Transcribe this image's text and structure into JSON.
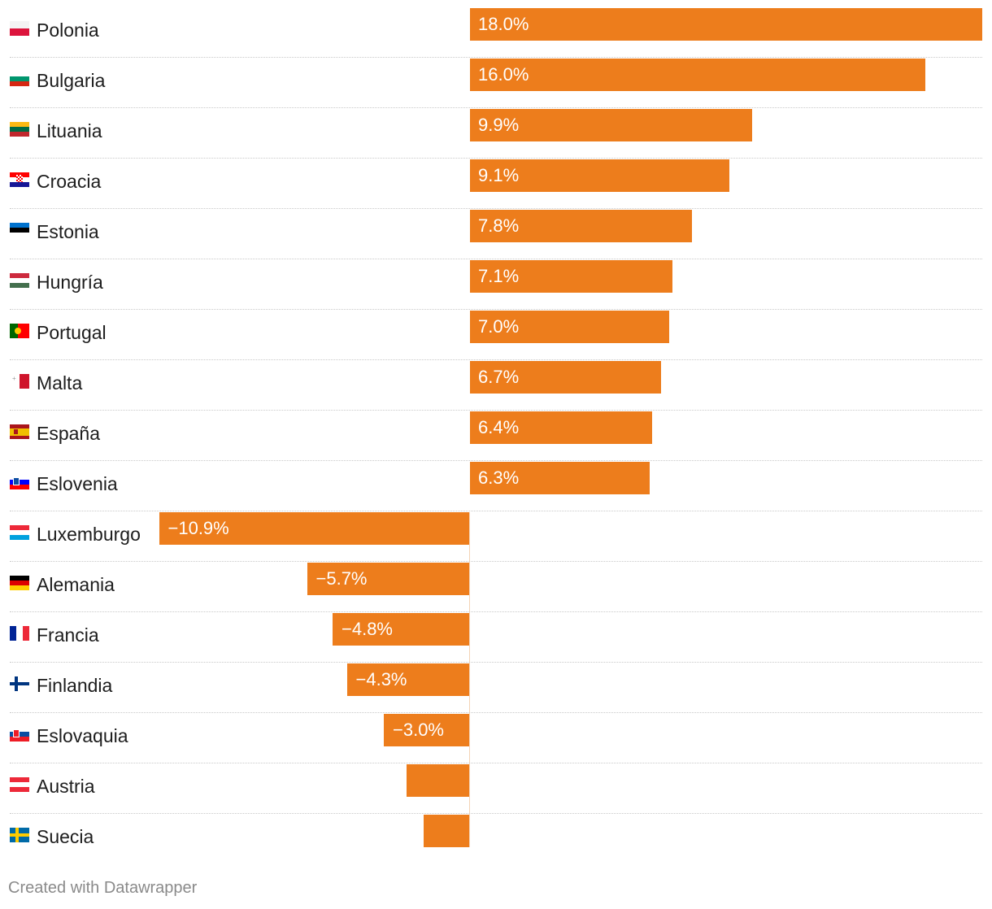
{
  "chart_data": {
    "type": "bar",
    "orientation": "horizontal",
    "categories": [
      "Polonia",
      "Bulgaria",
      "Lituania",
      "Croacia",
      "Estonia",
      "Hungría",
      "Portugal",
      "Malta",
      "España",
      "Eslovenia",
      "Luxemburgo",
      "Alemania",
      "Francia",
      "Finlandia",
      "Eslovaquia",
      "Austria",
      "Suecia"
    ],
    "values": [
      18.0,
      16.0,
      9.9,
      9.1,
      7.8,
      7.1,
      7.0,
      6.7,
      6.4,
      6.3,
      -10.9,
      -5.7,
      -4.8,
      -4.3,
      -3.0,
      -2.2,
      -1.6
    ],
    "value_labels": [
      "18.0%",
      "16.0%",
      "9.9%",
      "9.1%",
      "7.8%",
      "7.1%",
      "7.0%",
      "6.7%",
      "6.4%",
      "6.3%",
      "−10.9%",
      "−5.7%",
      "−4.8%",
      "−4.3%",
      "−3.0%",
      "",
      ""
    ],
    "flags": [
      "flag-poland-icon",
      "flag-bulgaria-icon",
      "flag-lithuania-icon",
      "flag-croatia-icon",
      "flag-estonia-icon",
      "flag-hungary-icon",
      "flag-portugal-icon",
      "flag-malta-icon",
      "flag-spain-icon",
      "flag-slovenia-icon",
      "flag-luxembourg-icon",
      "flag-germany-icon",
      "flag-france-icon",
      "flag-finland-icon",
      "flag-slovakia-icon",
      "flag-austria-icon",
      "flag-sweden-icon"
    ],
    "bar_color": "#ed7d1c",
    "xlim": [
      -10.9,
      18.0
    ],
    "grid": false,
    "title": "",
    "xlabel": "",
    "ylabel": ""
  },
  "footer": "Created with Datawrapper"
}
